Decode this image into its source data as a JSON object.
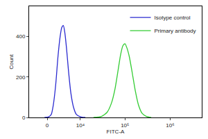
{
  "chart_data": {
    "type": "line",
    "x_label": "FITC-A",
    "y_label": "Count",
    "log": "x",
    "grid": false,
    "legend": "top-right",
    "xlim": [
      -4000,
      5000000
    ],
    "xticks": [
      0,
      {
        "value": 10000,
        "label": "10⁴"
      },
      {
        "value": 100000,
        "label": "10⁵"
      },
      {
        "value": 1000000,
        "label": "10⁶"
      }
    ],
    "ylim": [
      0,
      550
    ],
    "yticks": [
      0,
      200,
      400
    ],
    "series": [
      {
        "name": "Isotype control",
        "color": "#2b2bd0",
        "x": [
          -500,
          300,
          800,
          1200,
          1700,
          2200,
          2700,
          3100,
          3500,
          3900,
          4400,
          5000,
          5800,
          6800,
          8000,
          10000,
          13000
        ],
        "values": [
          0,
          3,
          15,
          60,
          160,
          300,
          400,
          445,
          455,
          420,
          340,
          230,
          120,
          50,
          15,
          3,
          0
        ]
      },
      {
        "name": "Primary antibody",
        "color": "#33cc33",
        "x": [
          20000,
          30000,
          40000,
          50000,
          60000,
          70000,
          80000,
          90000,
          100000,
          110000,
          125000,
          145000,
          170000,
          200000,
          240000,
          300000,
          380000
        ],
        "values": [
          0,
          5,
          25,
          70,
          140,
          230,
          310,
          355,
          365,
          345,
          300,
          220,
          130,
          60,
          20,
          5,
          0
        ]
      }
    ]
  }
}
